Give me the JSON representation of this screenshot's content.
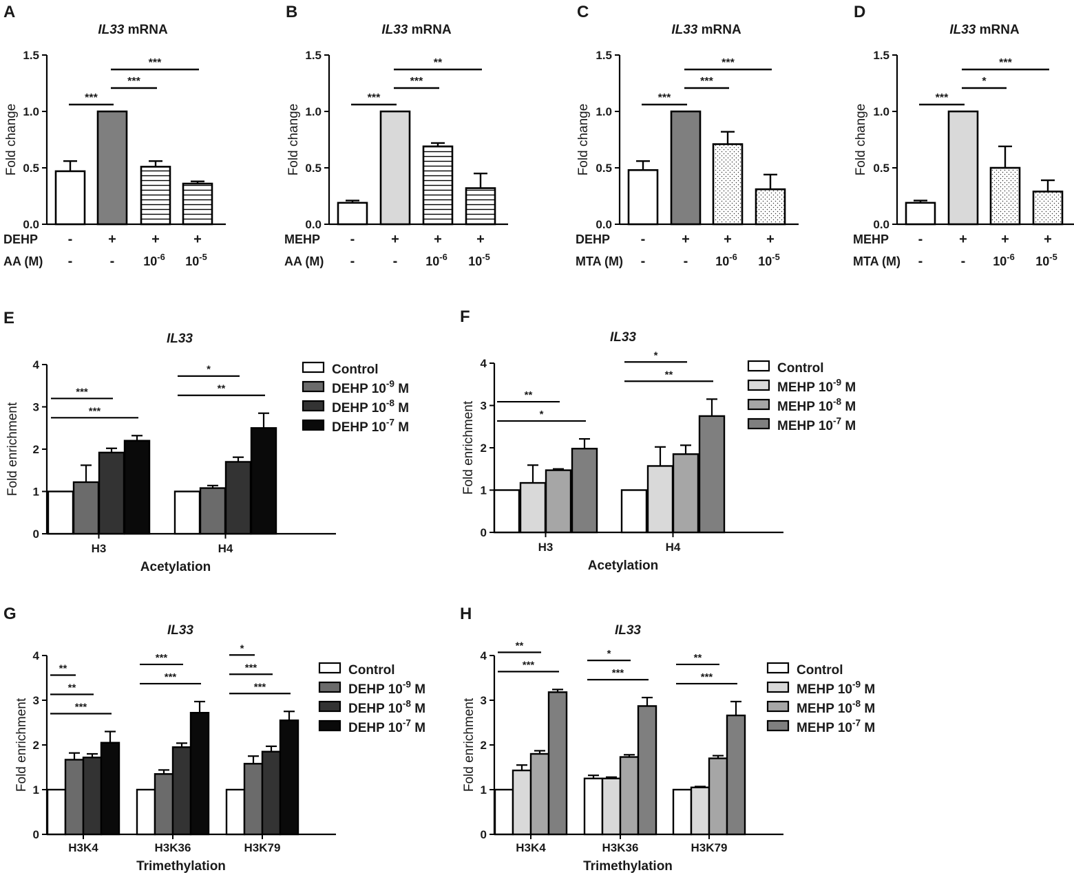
{
  "figure": {
    "description_hidden": ""
  },
  "chart_data": [
    {
      "id": "A",
      "panel_label": "A",
      "type": "bar",
      "title_gene": "IL33",
      "title_suffix": " mRNA",
      "ylabel": "Fold change",
      "ylim": [
        0,
        1.5
      ],
      "yticks": [
        "0.0",
        "0.5",
        "1.0",
        "1.5"
      ],
      "categories": [
        "1",
        "2",
        "3",
        "4"
      ],
      "values": [
        0.47,
        1.0,
        0.51,
        0.36
      ],
      "errors": [
        0.09,
        0,
        0.05,
        0.02
      ],
      "fills": [
        "white",
        "#7f7f7f",
        "hlines",
        "hlines"
      ],
      "row_labels": [
        {
          "label": "DEHP",
          "cells": [
            [
              "-"
            ],
            [
              "+"
            ],
            [
              "+"
            ],
            [
              "+"
            ]
          ]
        },
        {
          "label": "AA (M)",
          "cells": [
            [
              "-"
            ],
            [
              "-"
            ],
            [
              "10",
              "-6"
            ],
            [
              "10",
              "-5"
            ]
          ]
        }
      ],
      "significance": [
        {
          "from": 0,
          "to": 1,
          "label": "***"
        },
        {
          "from": 1,
          "to": 2,
          "label": "***"
        },
        {
          "from": 1,
          "to": 3,
          "label": "***"
        }
      ]
    },
    {
      "id": "B",
      "panel_label": "B",
      "type": "bar",
      "title_gene": "IL33",
      "title_suffix": " mRNA",
      "ylabel": "Fold change",
      "ylim": [
        0,
        1.5
      ],
      "yticks": [
        "0.0",
        "0.5",
        "1.0",
        "1.5"
      ],
      "categories": [
        "1",
        "2",
        "3",
        "4"
      ],
      "values": [
        0.19,
        1.0,
        0.69,
        0.32
      ],
      "errors": [
        0.02,
        0,
        0.03,
        0.13
      ],
      "fills": [
        "white",
        "#d9d9d9",
        "hlines",
        "hlines"
      ],
      "row_labels": [
        {
          "label": "MEHP",
          "cells": [
            [
              "-"
            ],
            [
              "+"
            ],
            [
              "+"
            ],
            [
              "+"
            ]
          ]
        },
        {
          "label": "AA (M)",
          "cells": [
            [
              "-"
            ],
            [
              "-"
            ],
            [
              "10",
              "-6"
            ],
            [
              "10",
              "-5"
            ]
          ]
        }
      ],
      "significance": [
        {
          "from": 0,
          "to": 1,
          "label": "***"
        },
        {
          "from": 1,
          "to": 2,
          "label": "***"
        },
        {
          "from": 1,
          "to": 3,
          "label": "**"
        }
      ]
    },
    {
      "id": "C",
      "panel_label": "C",
      "type": "bar",
      "title_gene": "IL33",
      "title_suffix": " mRNA",
      "ylabel": "Fold change",
      "ylim": [
        0,
        1.5
      ],
      "yticks": [
        "0.0",
        "0.5",
        "1.0",
        "1.5"
      ],
      "categories": [
        "1",
        "2",
        "3",
        "4"
      ],
      "values": [
        0.48,
        1.0,
        0.71,
        0.31
      ],
      "errors": [
        0.08,
        0,
        0.11,
        0.13
      ],
      "fills": [
        "white",
        "#7f7f7f",
        "dots",
        "dots"
      ],
      "row_labels": [
        {
          "label": "DEHP",
          "cells": [
            [
              "-"
            ],
            [
              "+"
            ],
            [
              "+"
            ],
            [
              "+"
            ]
          ]
        },
        {
          "label": "MTA (M)",
          "cells": [
            [
              "-"
            ],
            [
              "-"
            ],
            [
              "10",
              "-6"
            ],
            [
              "10",
              "-5"
            ]
          ]
        }
      ],
      "significance": [
        {
          "from": 0,
          "to": 1,
          "label": "***"
        },
        {
          "from": 1,
          "to": 2,
          "label": "***"
        },
        {
          "from": 1,
          "to": 3,
          "label": "***"
        }
      ]
    },
    {
      "id": "D",
      "panel_label": "D",
      "type": "bar",
      "title_gene": "IL33",
      "title_suffix": " mRNA",
      "ylabel": "Fold change",
      "ylim": [
        0,
        1.5
      ],
      "yticks": [
        "0.0",
        "0.5",
        "1.0",
        "1.5"
      ],
      "categories": [
        "1",
        "2",
        "3",
        "4"
      ],
      "values": [
        0.19,
        1.0,
        0.5,
        0.29
      ],
      "errors": [
        0.02,
        0,
        0.19,
        0.1
      ],
      "fills": [
        "white",
        "#d9d9d9",
        "dots",
        "dots"
      ],
      "row_labels": [
        {
          "label": "MEHP",
          "cells": [
            [
              "-"
            ],
            [
              "+"
            ],
            [
              "+"
            ],
            [
              "+"
            ]
          ]
        },
        {
          "label": "MTA (M)",
          "cells": [
            [
              "-"
            ],
            [
              "-"
            ],
            [
              "10",
              "-6"
            ],
            [
              "10",
              "-5"
            ]
          ]
        }
      ],
      "significance": [
        {
          "from": 0,
          "to": 1,
          "label": "***"
        },
        {
          "from": 1,
          "to": 2,
          "label": "*"
        },
        {
          "from": 1,
          "to": 3,
          "label": "***"
        }
      ]
    },
    {
      "id": "E",
      "panel_label": "E",
      "type": "grouped-bar",
      "title_gene": "IL33",
      "title_suffix": "",
      "ylabel": "Fold enrichment",
      "xlabel": "Acetylation",
      "ylim": [
        0,
        4
      ],
      "yticks": [
        "0",
        "1",
        "2",
        "3",
        "4"
      ],
      "categories": [
        "H3",
        "H4"
      ],
      "series": [
        {
          "name": "Control",
          "name_sup": "",
          "name_tail": "",
          "fill": "#ffffff",
          "values": [
            1.0,
            1.0
          ],
          "errors": [
            0,
            0
          ]
        },
        {
          "name": "DEHP 10",
          "name_sup": "-9",
          "name_tail": " M",
          "fill": "#6b6b6b",
          "values": [
            1.22,
            1.08
          ],
          "errors": [
            0.4,
            0.06
          ]
        },
        {
          "name": "DEHP 10",
          "name_sup": "-8",
          "name_tail": " M",
          "fill": "#333333",
          "values": [
            1.92,
            1.7
          ],
          "errors": [
            0.1,
            0.11
          ]
        },
        {
          "name": "DEHP 10",
          "name_sup": "-7",
          "name_tail": " M",
          "fill": "#0a0a0a",
          "values": [
            2.2,
            2.5
          ],
          "errors": [
            0.12,
            0.35
          ]
        }
      ],
      "significance": [
        {
          "group": 0,
          "from": 0,
          "to": 2,
          "label": "***"
        },
        {
          "group": 0,
          "from": 0,
          "to": 3,
          "label": "***"
        },
        {
          "group": 1,
          "from": 0,
          "to": 2,
          "label": "*"
        },
        {
          "group": 1,
          "from": 0,
          "to": 3,
          "label": "**"
        }
      ]
    },
    {
      "id": "F",
      "panel_label": "F",
      "type": "grouped-bar",
      "title_gene": "IL33",
      "title_suffix": "",
      "ylabel": "Fold enrichment",
      "xlabel": "Acetylation",
      "ylim": [
        0,
        4
      ],
      "yticks": [
        "0",
        "1",
        "2",
        "3",
        "4"
      ],
      "categories": [
        "H3",
        "H4"
      ],
      "series": [
        {
          "name": "Control",
          "name_sup": "",
          "name_tail": "",
          "fill": "#ffffff",
          "values": [
            1.0,
            1.0
          ],
          "errors": [
            0,
            0
          ]
        },
        {
          "name": "MEHP 10",
          "name_sup": "-9",
          "name_tail": " M",
          "fill": "#d9d9d9",
          "values": [
            1.17,
            1.57
          ],
          "errors": [
            0.42,
            0.45
          ]
        },
        {
          "name": "MEHP 10",
          "name_sup": "-8",
          "name_tail": " M",
          "fill": "#a6a6a6",
          "values": [
            1.47,
            1.85
          ],
          "errors": [
            0.03,
            0.21
          ]
        },
        {
          "name": "MEHP 10",
          "name_sup": "-7",
          "name_tail": " M",
          "fill": "#7f7f7f",
          "values": [
            1.98,
            2.75
          ],
          "errors": [
            0.23,
            0.4
          ]
        }
      ],
      "significance": [
        {
          "group": 0,
          "from": 0,
          "to": 2,
          "label": "**"
        },
        {
          "group": 0,
          "from": 0,
          "to": 3,
          "label": "*"
        },
        {
          "group": 1,
          "from": 0,
          "to": 2,
          "label": "*"
        },
        {
          "group": 1,
          "from": 0,
          "to": 3,
          "label": "**"
        }
      ]
    },
    {
      "id": "G",
      "panel_label": "G",
      "type": "grouped-bar",
      "title_gene": "IL33",
      "title_suffix": "",
      "ylabel": "Fold enrichment",
      "xlabel": "Trimethylation",
      "ylim": [
        0,
        4
      ],
      "yticks": [
        "0",
        "1",
        "2",
        "3",
        "4"
      ],
      "categories": [
        "H3K4",
        "H3K36",
        "H3K79"
      ],
      "series": [
        {
          "name": "Control",
          "name_sup": "",
          "name_tail": "",
          "fill": "#ffffff",
          "values": [
            1.0,
            1.0,
            1.0
          ],
          "errors": [
            0,
            0,
            0
          ]
        },
        {
          "name": "DEHP 10",
          "name_sup": "-9",
          "name_tail": " M",
          "fill": "#6b6b6b",
          "values": [
            1.67,
            1.35,
            1.58
          ],
          "errors": [
            0.15,
            0.09,
            0.17
          ]
        },
        {
          "name": "DEHP 10",
          "name_sup": "-8",
          "name_tail": " M",
          "fill": "#333333",
          "values": [
            1.72,
            1.95,
            1.85
          ],
          "errors": [
            0.08,
            0.09,
            0.12
          ]
        },
        {
          "name": "DEHP 10",
          "name_sup": "-7",
          "name_tail": " M",
          "fill": "#0a0a0a",
          "values": [
            2.05,
            2.72,
            2.55
          ],
          "errors": [
            0.25,
            0.25,
            0.2
          ]
        }
      ],
      "significance": [
        {
          "group": 0,
          "from": 0,
          "to": 1,
          "label": "**"
        },
        {
          "group": 0,
          "from": 0,
          "to": 2,
          "label": "**"
        },
        {
          "group": 0,
          "from": 0,
          "to": 3,
          "label": "***"
        },
        {
          "group": 1,
          "from": 0,
          "to": 2,
          "label": "***"
        },
        {
          "group": 1,
          "from": 0,
          "to": 3,
          "label": "***"
        },
        {
          "group": 2,
          "from": 0,
          "to": 1,
          "label": "*"
        },
        {
          "group": 2,
          "from": 0,
          "to": 2,
          "label": "***"
        },
        {
          "group": 2,
          "from": 0,
          "to": 3,
          "label": "***"
        }
      ]
    },
    {
      "id": "H",
      "panel_label": "H",
      "type": "grouped-bar",
      "title_gene": "IL33",
      "title_suffix": "",
      "ylabel": "Fold enrichment",
      "xlabel": "Trimethylation",
      "ylim": [
        0,
        4
      ],
      "yticks": [
        "0",
        "1",
        "2",
        "3",
        "4"
      ],
      "categories": [
        "H3K4",
        "H3K36",
        "H3K79"
      ],
      "series": [
        {
          "name": "Control",
          "name_sup": "",
          "name_tail": "",
          "fill": "#ffffff",
          "values": [
            1.0,
            1.25,
            1.0
          ],
          "errors": [
            0,
            0.07,
            0
          ]
        },
        {
          "name": "MEHP 10",
          "name_sup": "-9",
          "name_tail": " M",
          "fill": "#d9d9d9",
          "values": [
            1.43,
            1.25,
            1.05
          ],
          "errors": [
            0.12,
            0.03,
            0.02
          ]
        },
        {
          "name": "MEHP 10",
          "name_sup": "-8",
          "name_tail": " M",
          "fill": "#a6a6a6",
          "values": [
            1.8,
            1.73,
            1.7
          ],
          "errors": [
            0.07,
            0.05,
            0.06
          ]
        },
        {
          "name": "MEHP 10",
          "name_sup": "-7",
          "name_tail": " M",
          "fill": "#7f7f7f",
          "values": [
            3.18,
            2.87,
            2.66
          ],
          "errors": [
            0.06,
            0.19,
            0.31
          ]
        }
      ],
      "significance": [
        {
          "group": 0,
          "from": 0,
          "to": 2,
          "label": "**"
        },
        {
          "group": 0,
          "from": 0,
          "to": 3,
          "label": "***"
        },
        {
          "group": 1,
          "from": 0,
          "to": 2,
          "label": "*"
        },
        {
          "group": 1,
          "from": 0,
          "to": 3,
          "label": "***"
        },
        {
          "group": 2,
          "from": 0,
          "to": 2,
          "label": "**"
        },
        {
          "group": 2,
          "from": 0,
          "to": 3,
          "label": "***"
        }
      ]
    }
  ]
}
